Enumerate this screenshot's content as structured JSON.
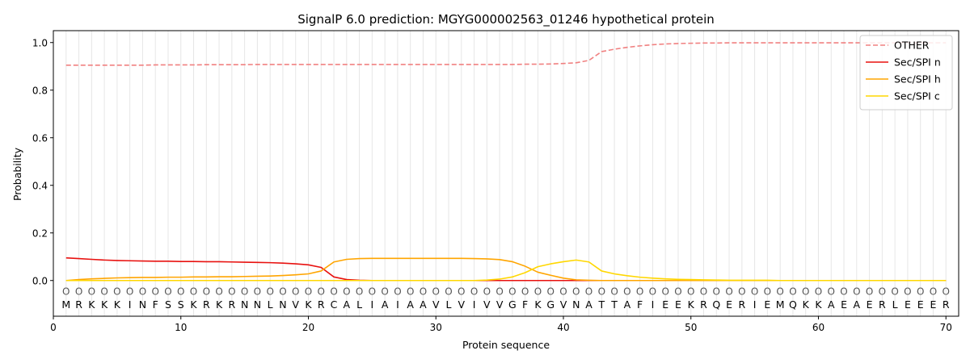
{
  "chart_data": {
    "type": "line",
    "title": "SignalP 6.0 prediction: MGYG000002563_01246 hypothetical protein",
    "xlabel": "Protein sequence",
    "ylabel": "Probability",
    "xlim": [
      0,
      71
    ],
    "ylim": [
      -0.15,
      1.05
    ],
    "xticks": [
      0,
      10,
      20,
      30,
      40,
      50,
      60,
      70
    ],
    "yticks": [
      0.0,
      0.2,
      0.4,
      0.6,
      0.8,
      1.0
    ],
    "grid": "vertical lines at each residue",
    "legend_position": "top-right",
    "sequence": [
      "M",
      "R",
      "K",
      "K",
      "K",
      "I",
      "N",
      "F",
      "S",
      "S",
      "K",
      "R",
      "K",
      "R",
      "N",
      "N",
      "L",
      "N",
      "V",
      "K",
      "R",
      "C",
      "A",
      "L",
      "I",
      "A",
      "I",
      "A",
      "A",
      "V",
      "L",
      "V",
      "I",
      "V",
      "V",
      "G",
      "F",
      "K",
      "G",
      "V",
      "N",
      "A",
      "T",
      "T",
      "A",
      "F",
      "I",
      "E",
      "E",
      "K",
      "R",
      "Q",
      "E",
      "R",
      "I",
      "E",
      "M",
      "Q",
      "K",
      "K",
      "A",
      "E",
      "A",
      "E",
      "R",
      "L",
      "E",
      "E",
      "E",
      "R"
    ],
    "position_labels": [
      "O",
      "O",
      "O",
      "O",
      "O",
      "O",
      "O",
      "O",
      "O",
      "O",
      "O",
      "O",
      "O",
      "O",
      "O",
      "O",
      "O",
      "O",
      "O",
      "O",
      "O",
      "O",
      "O",
      "O",
      "O",
      "O",
      "O",
      "O",
      "O",
      "O",
      "O",
      "O",
      "O",
      "O",
      "O",
      "O",
      "O",
      "O",
      "O",
      "O",
      "O",
      "O",
      "O",
      "O",
      "O",
      "O",
      "O",
      "O",
      "O",
      "O",
      "O",
      "O",
      "O",
      "O",
      "O",
      "O",
      "O",
      "O",
      "O",
      "O",
      "O",
      "O",
      "O",
      "O",
      "O",
      "O",
      "O",
      "O",
      "O",
      "O"
    ],
    "series": [
      {
        "name": "OTHER",
        "color": "#f08080",
        "dash": true,
        "values": [
          0.905,
          0.905,
          0.905,
          0.905,
          0.905,
          0.905,
          0.905,
          0.906,
          0.906,
          0.906,
          0.906,
          0.907,
          0.907,
          0.907,
          0.907,
          0.908,
          0.908,
          0.908,
          0.908,
          0.908,
          0.908,
          0.908,
          0.908,
          0.908,
          0.908,
          0.908,
          0.908,
          0.908,
          0.908,
          0.908,
          0.908,
          0.908,
          0.908,
          0.908,
          0.908,
          0.908,
          0.909,
          0.909,
          0.91,
          0.912,
          0.915,
          0.925,
          0.962,
          0.972,
          0.98,
          0.986,
          0.991,
          0.994,
          0.996,
          0.997,
          0.998,
          0.998,
          0.999,
          0.999,
          0.999,
          0.999,
          0.999,
          0.999,
          0.999,
          0.999,
          0.999,
          0.999,
          0.999,
          0.999,
          0.999,
          0.999,
          0.999,
          0.999,
          0.999,
          0.999
        ]
      },
      {
        "name": "Sec/SPI n",
        "color": "#e8110f",
        "dash": false,
        "values": [
          0.095,
          0.092,
          0.089,
          0.086,
          0.084,
          0.083,
          0.082,
          0.081,
          0.081,
          0.08,
          0.08,
          0.079,
          0.079,
          0.078,
          0.077,
          0.076,
          0.075,
          0.073,
          0.07,
          0.066,
          0.055,
          0.015,
          0.004,
          0.001,
          0.0,
          0.0,
          0.0,
          0.0,
          0.0,
          0.0,
          0.0,
          0.0,
          0.0,
          0.0,
          0.0,
          0.0,
          0.0,
          0.0,
          0.0,
          0.0,
          0.0,
          0.0,
          0.0,
          0.0,
          0.0,
          0.0,
          0.0,
          0.0,
          0.0,
          0.0,
          0.0,
          0.0,
          0.0,
          0.0,
          0.0,
          0.0,
          0.0,
          0.0,
          0.0,
          0.0,
          0.0,
          0.0,
          0.0,
          0.0,
          0.0,
          0.0,
          0.0,
          0.0,
          0.0,
          0.0
        ]
      },
      {
        "name": "Sec/SPI h",
        "color": "#ffa500",
        "dash": false,
        "values": [
          0.0,
          0.004,
          0.007,
          0.009,
          0.011,
          0.012,
          0.013,
          0.013,
          0.014,
          0.014,
          0.015,
          0.015,
          0.016,
          0.016,
          0.017,
          0.018,
          0.019,
          0.021,
          0.024,
          0.028,
          0.04,
          0.078,
          0.089,
          0.092,
          0.093,
          0.093,
          0.093,
          0.093,
          0.093,
          0.093,
          0.093,
          0.093,
          0.092,
          0.091,
          0.088,
          0.079,
          0.06,
          0.035,
          0.022,
          0.01,
          0.003,
          0.001,
          0.0,
          0.0,
          0.0,
          0.0,
          0.0,
          0.0,
          0.0,
          0.0,
          0.0,
          0.0,
          0.0,
          0.0,
          0.0,
          0.0,
          0.0,
          0.0,
          0.0,
          0.0,
          0.0,
          0.0,
          0.0,
          0.0,
          0.0,
          0.0,
          0.0,
          0.0,
          0.0,
          0.0
        ]
      },
      {
        "name": "Sec/SPI c",
        "color": "#ffd700",
        "dash": false,
        "values": [
          0.0,
          0.0,
          0.0,
          0.0,
          0.0,
          0.0,
          0.0,
          0.0,
          0.0,
          0.0,
          0.0,
          0.0,
          0.0,
          0.0,
          0.0,
          0.0,
          0.0,
          0.0,
          0.0,
          0.0,
          0.0,
          0.0,
          0.0,
          0.0,
          0.0,
          0.0,
          0.0,
          0.0,
          0.0,
          0.0,
          0.0,
          0.0,
          0.0,
          0.002,
          0.006,
          0.015,
          0.033,
          0.058,
          0.07,
          0.079,
          0.086,
          0.078,
          0.04,
          0.028,
          0.02,
          0.014,
          0.01,
          0.007,
          0.005,
          0.004,
          0.003,
          0.002,
          0.001,
          0.001,
          0.001,
          0.001,
          0.0,
          0.0,
          0.0,
          0.0,
          0.0,
          0.0,
          0.0,
          0.0,
          0.0,
          0.0,
          0.0,
          0.0,
          0.0,
          0.0
        ]
      }
    ]
  }
}
